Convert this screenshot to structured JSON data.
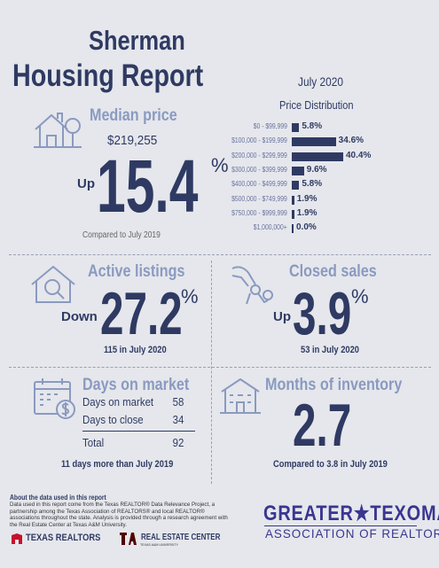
{
  "header": {
    "city": "Sherman",
    "title": "Housing Report",
    "month": "July 2020"
  },
  "median_price": {
    "label": "Median price",
    "value": "$219,255",
    "direction": "Up",
    "change": "15.4",
    "percent_sign": "%",
    "comparison": "Compared to July 2019"
  },
  "price_distribution": {
    "title": "Price Distribution",
    "rows": [
      {
        "range": "$0 - $99,999",
        "value": "5.8%",
        "pct": 5.8
      },
      {
        "range": "$100,000 - $199,999",
        "value": "34.6%",
        "pct": 34.6
      },
      {
        "range": "$200,000 - $299,999",
        "value": "40.4%",
        "pct": 40.4
      },
      {
        "range": "$300,000 - $399,999",
        "value": "9.6%",
        "pct": 9.6
      },
      {
        "range": "$400,000 - $499,999",
        "value": "5.8%",
        "pct": 5.8
      },
      {
        "range": "$500,000 - $749,999",
        "value": "1.9%",
        "pct": 1.9
      },
      {
        "range": "$750,000 - $999,999",
        "value": "1.9%",
        "pct": 1.9
      },
      {
        "range": "$1,000,000+",
        "value": "0.0%",
        "pct": 0.0
      }
    ]
  },
  "active_listings": {
    "label": "Active listings",
    "direction": "Down",
    "change": "27.2",
    "percent_sign": "%",
    "detail": "115 in July 2020"
  },
  "closed_sales": {
    "label": "Closed sales",
    "direction": "Up",
    "change": "3.9",
    "percent_sign": "%",
    "detail": "53 in July 2020"
  },
  "days_on_market": {
    "label": "Days on market",
    "rows": [
      {
        "label": "Days on market",
        "value": "58"
      },
      {
        "label": "Days to close",
        "value": "34"
      }
    ],
    "total_label": "Total",
    "total_value": "92",
    "detail": "11 days more than July 2019"
  },
  "months_inventory": {
    "label": "Months of inventory",
    "value": "2.7",
    "detail": "Compared to 3.8 in July 2019"
  },
  "about": {
    "heading": "About the data used in this report",
    "text": "Data used in this report come from the Texas REALTOR® Data Relevance Project, a partnership among the Texas Association of REALTORS® and local REALTOR® associations throughout the state. Analysis is provided through a research agreement with the Real Estate Center at Texas A&M University."
  },
  "logos": {
    "association_line1": "GREATER★TEXOMA",
    "association_line2": "ASSOCIATION OF REALTORS",
    "texas_realtors": "TEXAS REALTORS",
    "rec": "REAL ESTATE CENTER",
    "rec_sub": "TEXAS A&M UNIVERSITY",
    "colors": {
      "navy": "#2f3a63",
      "light_blue": "#8a9ac0",
      "purple": "#3a3590",
      "red": "#c8102e"
    }
  }
}
